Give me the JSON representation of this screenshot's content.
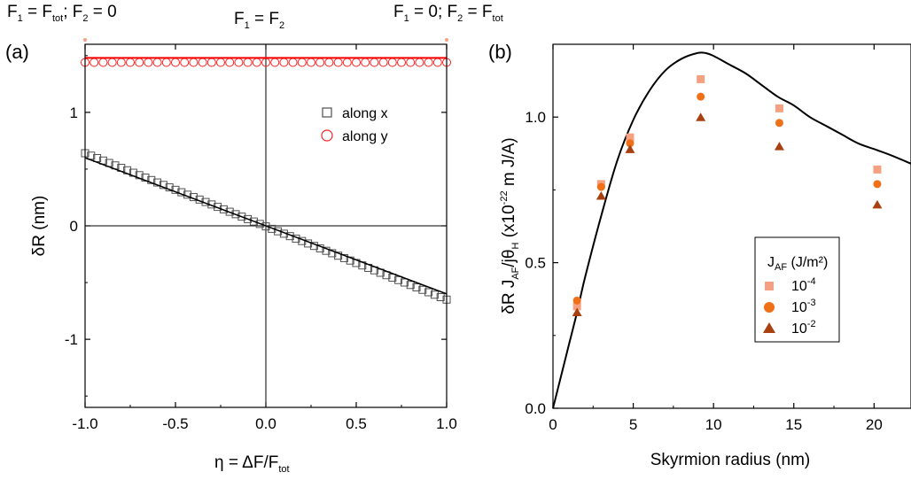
{
  "chart_data": [
    {
      "panel_label": "(a)",
      "type": "scatter",
      "xlabel": "η = ΔF/F",
      "xlabel_sub": "tot",
      "ylabel": "δR (nm)",
      "xlim": [
        -1.0,
        1.0
      ],
      "ylim": [
        -1.6,
        1.6
      ],
      "xticks": [
        -1.0,
        -0.5,
        0.0,
        0.5,
        1.0
      ],
      "xtick_labels": [
        "-1.0",
        "-0.5",
        "0.0",
        "0.5",
        "1.0"
      ],
      "yticks": [
        -1,
        0,
        1
      ],
      "ytick_labels": [
        "-1",
        "0",
        "1"
      ],
      "top_annotations": {
        "left": "F1 = Ftot; F2 = 0",
        "center": "F1 = F2",
        "right": "F1 = 0; F2 = Ftot"
      },
      "legend": {
        "position": "top-right",
        "entries": [
          {
            "label": "along x",
            "marker": "square",
            "color": "#505050"
          },
          {
            "label": "along y",
            "marker": "circle",
            "color": "#ff2020"
          }
        ]
      },
      "series": [
        {
          "name": "along x",
          "marker": "square",
          "color": "#505050",
          "x_range": [
            -1.0,
            1.0
          ],
          "n_points": 61,
          "y_start": 0.64,
          "y_end": -0.65
        },
        {
          "name": "along y",
          "marker": "circle",
          "color": "#ff2020",
          "x_range": [
            -1.0,
            1.0
          ],
          "n_points": 41,
          "y_const": 1.44
        }
      ],
      "fit_lines": [
        {
          "color": "#000000",
          "x": [
            -1.0,
            1.0
          ],
          "y": [
            0.6,
            -0.6
          ]
        },
        {
          "color": "#ff0000",
          "x": [
            -1.0,
            1.0
          ],
          "y": [
            1.48,
            1.48
          ]
        }
      ],
      "reference_lines": {
        "y": 0,
        "x": 0
      }
    },
    {
      "panel_label": "(b)",
      "type": "scatter",
      "xlabel": "Skyrmion radius (nm)",
      "ylabel": "δR J_AF/jθ_H (x10^-22 m J/A)",
      "xlim": [
        0,
        22.3
      ],
      "ylim": [
        0,
        1.25
      ],
      "xticks": [
        0,
        5,
        10,
        15,
        20
      ],
      "xtick_labels": [
        "0",
        "5",
        "10",
        "15",
        "20"
      ],
      "yticks": [
        0.0,
        0.5,
        1.0
      ],
      "ytick_labels": [
        "0.0",
        "0.5",
        "1.0"
      ],
      "legend": {
        "position": "center-right",
        "title": "J_AF (J/m²)",
        "entries": [
          {
            "label": "10^-4",
            "marker": "square",
            "color": "#f5a080"
          },
          {
            "label": "10^-3",
            "marker": "circle",
            "color": "#f07018"
          },
          {
            "label": "10^-2",
            "marker": "triangle",
            "color": "#a84010"
          }
        ]
      },
      "series": [
        {
          "name": "10^-4",
          "marker": "square",
          "color": "#f5a080",
          "x": [
            1.5,
            3.0,
            4.8,
            9.2,
            14.1,
            20.2
          ],
          "y": [
            0.35,
            0.77,
            0.93,
            1.13,
            1.03,
            0.82
          ]
        },
        {
          "name": "10^-3",
          "marker": "circle",
          "color": "#f07018",
          "x": [
            1.5,
            3.0,
            4.8,
            9.2,
            14.1,
            20.2
          ],
          "y": [
            0.37,
            0.76,
            0.91,
            1.07,
            0.98,
            0.77
          ]
        },
        {
          "name": "10^-2",
          "marker": "triangle",
          "color": "#a84010",
          "x": [
            1.5,
            3.0,
            4.8,
            9.2,
            14.1,
            20.2
          ],
          "y": [
            0.33,
            0.73,
            0.89,
            1.0,
            0.9,
            0.7
          ]
        }
      ],
      "curve": {
        "color": "#000000",
        "x": [
          0,
          0.5,
          1,
          1.5,
          2,
          3,
          4,
          5,
          6,
          7,
          8,
          9,
          9.5,
          10,
          11,
          12,
          13,
          14,
          15,
          16,
          17,
          18,
          19,
          20,
          21,
          22.3
        ],
        "y": [
          0,
          0.11,
          0.22,
          0.33,
          0.45,
          0.66,
          0.85,
          0.99,
          1.09,
          1.16,
          1.2,
          1.22,
          1.22,
          1.21,
          1.18,
          1.15,
          1.11,
          1.07,
          1.04,
          1.0,
          0.97,
          0.94,
          0.91,
          0.89,
          0.87,
          0.84
        ]
      }
    }
  ]
}
